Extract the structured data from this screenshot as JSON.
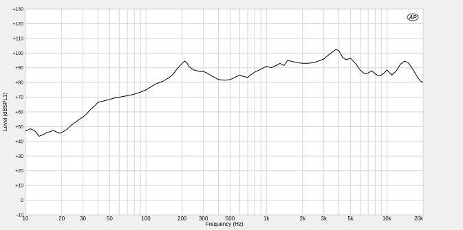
{
  "window": {
    "title": "",
    "logo_text": "AP"
  },
  "chart_data": {
    "type": "line",
    "title": "",
    "xlabel": "Frequency (Hz)",
    "ylabel": "Level (dBSPL1)",
    "xscale": "log",
    "xlim": [
      10,
      20000
    ],
    "ylim": [
      -10,
      130
    ],
    "grid": true,
    "legend": "none",
    "colors": {
      "plot_bg": "#ffffff",
      "grid": "#d4d4d4",
      "line": "#000000",
      "frame": "#808080",
      "window_bg": "#f0f0f0"
    },
    "x_ticks": [
      {
        "value": 10,
        "label": "10"
      },
      {
        "value": 20,
        "label": "20"
      },
      {
        "value": 30,
        "label": "30"
      },
      {
        "value": 50,
        "label": "50"
      },
      {
        "value": 100,
        "label": "100"
      },
      {
        "value": 200,
        "label": "200"
      },
      {
        "value": 300,
        "label": "300"
      },
      {
        "value": 500,
        "label": "500"
      },
      {
        "value": 1000,
        "label": "1k"
      },
      {
        "value": 2000,
        "label": "2k"
      },
      {
        "value": 3000,
        "label": "3k"
      },
      {
        "value": 5000,
        "label": "5k"
      },
      {
        "value": 10000,
        "label": "10k"
      },
      {
        "value": 20000,
        "label": "20k"
      }
    ],
    "y_ticks": [
      {
        "value": 130,
        "label": "+130"
      },
      {
        "value": 120,
        "label": "+120"
      },
      {
        "value": 110,
        "label": "+110"
      },
      {
        "value": 100,
        "label": "+100"
      },
      {
        "value": 90,
        "label": "+90"
      },
      {
        "value": 80,
        "label": "+80"
      },
      {
        "value": 70,
        "label": "+70"
      },
      {
        "value": 60,
        "label": "+60"
      },
      {
        "value": 50,
        "label": "+50"
      },
      {
        "value": 40,
        "label": "+40"
      },
      {
        "value": 30,
        "label": "+30"
      },
      {
        "value": 20,
        "label": "+20"
      },
      {
        "value": 10,
        "label": "+10"
      },
      {
        "value": 0,
        "label": "0"
      },
      {
        "value": -10,
        "label": "-10"
      }
    ],
    "series": [
      {
        "x": [
          10,
          11,
          12,
          13,
          14,
          15,
          16,
          17,
          18,
          19,
          20,
          22,
          24,
          26,
          28,
          30,
          32,
          35,
          38,
          40,
          45,
          50,
          55,
          60,
          70,
          80,
          90,
          100,
          110,
          120,
          130,
          140,
          150,
          160,
          170,
          180,
          190,
          200,
          210,
          220,
          230,
          250,
          280,
          300,
          320,
          350,
          380,
          400,
          450,
          500,
          550,
          600,
          650,
          700,
          750,
          800,
          900,
          1000,
          1100,
          1200,
          1300,
          1400,
          1500,
          1600,
          1800,
          2000,
          2200,
          2500,
          2800,
          3000,
          3200,
          3500,
          3800,
          4000,
          4300,
          4600,
          5000,
          5500,
          6000,
          6500,
          7000,
          7500,
          8000,
          8500,
          9000,
          9500,
          10000,
          11000,
          12000,
          13000,
          14000,
          15000,
          16000,
          17000,
          18000,
          19000,
          20000
        ],
        "y": [
          47,
          48.5,
          47,
          43.5,
          44.5,
          46,
          46.5,
          47.5,
          46.5,
          45.5,
          46,
          48,
          51,
          53,
          55,
          56.5,
          58.5,
          62,
          64.5,
          66.5,
          67.5,
          68.5,
          69.5,
          70,
          71,
          72,
          73.5,
          75,
          77,
          79,
          80,
          81,
          82.5,
          84,
          86,
          89,
          91,
          93,
          94.5,
          93,
          90.5,
          88.5,
          87.5,
          87.5,
          86.5,
          84.5,
          83,
          82,
          81.5,
          82,
          83.5,
          85,
          84,
          83.5,
          85.5,
          87,
          89,
          91,
          90,
          91.5,
          93,
          91.5,
          95,
          94.5,
          93.5,
          93,
          93,
          93.5,
          95,
          96,
          98,
          100.5,
          102.5,
          101.5,
          97,
          95.5,
          96.5,
          93,
          88.5,
          86,
          86.5,
          88,
          86,
          84.5,
          85,
          86.5,
          88.5,
          85,
          88,
          92.5,
          94.5,
          93.5,
          90.5,
          87,
          83.5,
          81,
          80
        ]
      }
    ]
  }
}
